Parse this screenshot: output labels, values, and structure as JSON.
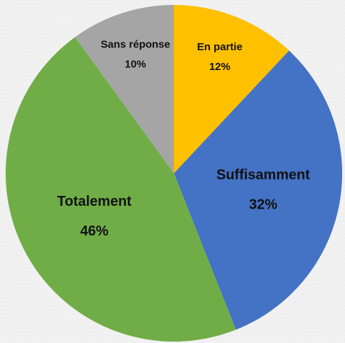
{
  "chart_data": {
    "type": "pie",
    "categories": [
      "En partie",
      "Suffisamment",
      "Totalement",
      "Sans réponse"
    ],
    "values": [
      12,
      32,
      46,
      10
    ],
    "value_labels": [
      "12%",
      "32%",
      "46%",
      "10%"
    ],
    "colors": [
      "#ffc000",
      "#4472c4",
      "#70ad47",
      "#a5a5a5"
    ]
  }
}
